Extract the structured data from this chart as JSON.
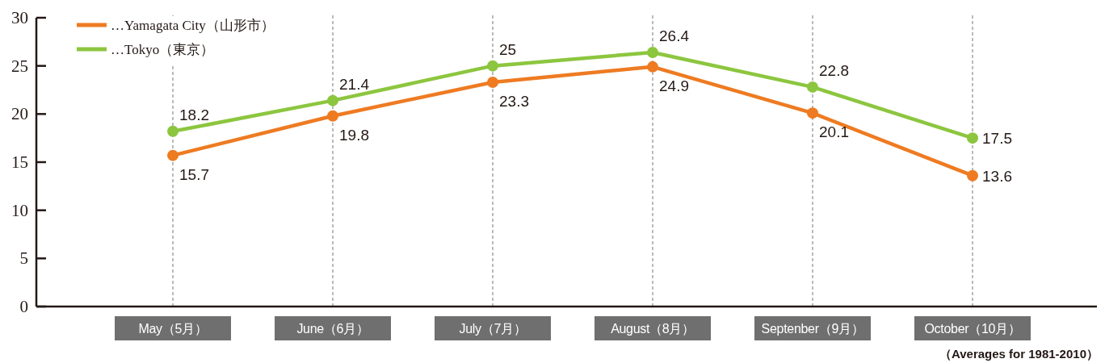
{
  "chart_data": {
    "type": "line",
    "categories": [
      "May（5月）",
      "June（6月）",
      "July（7月）",
      "August（8月）",
      "Septenber（9月）",
      "October（10月）"
    ],
    "series": [
      {
        "name": "…Yamagata City（山形市）",
        "color": "#ee7b22",
        "values": [
          15.7,
          19.8,
          23.3,
          24.9,
          20.1,
          13.6
        ]
      },
      {
        "name": "…Tokyo（東京）",
        "color": "#8cc63f",
        "values": [
          18.2,
          21.4,
          25,
          26.4,
          22.8,
          17.5
        ]
      }
    ],
    "ylim": [
      0,
      30
    ],
    "yticks": [
      0,
      5,
      10,
      15,
      20,
      25,
      30
    ],
    "grid": "x",
    "legend": "top left",
    "marker": "circle",
    "line_style": "solid",
    "data_labels": true,
    "annotations": [
      "（Averages for 1981-2010）"
    ]
  }
}
